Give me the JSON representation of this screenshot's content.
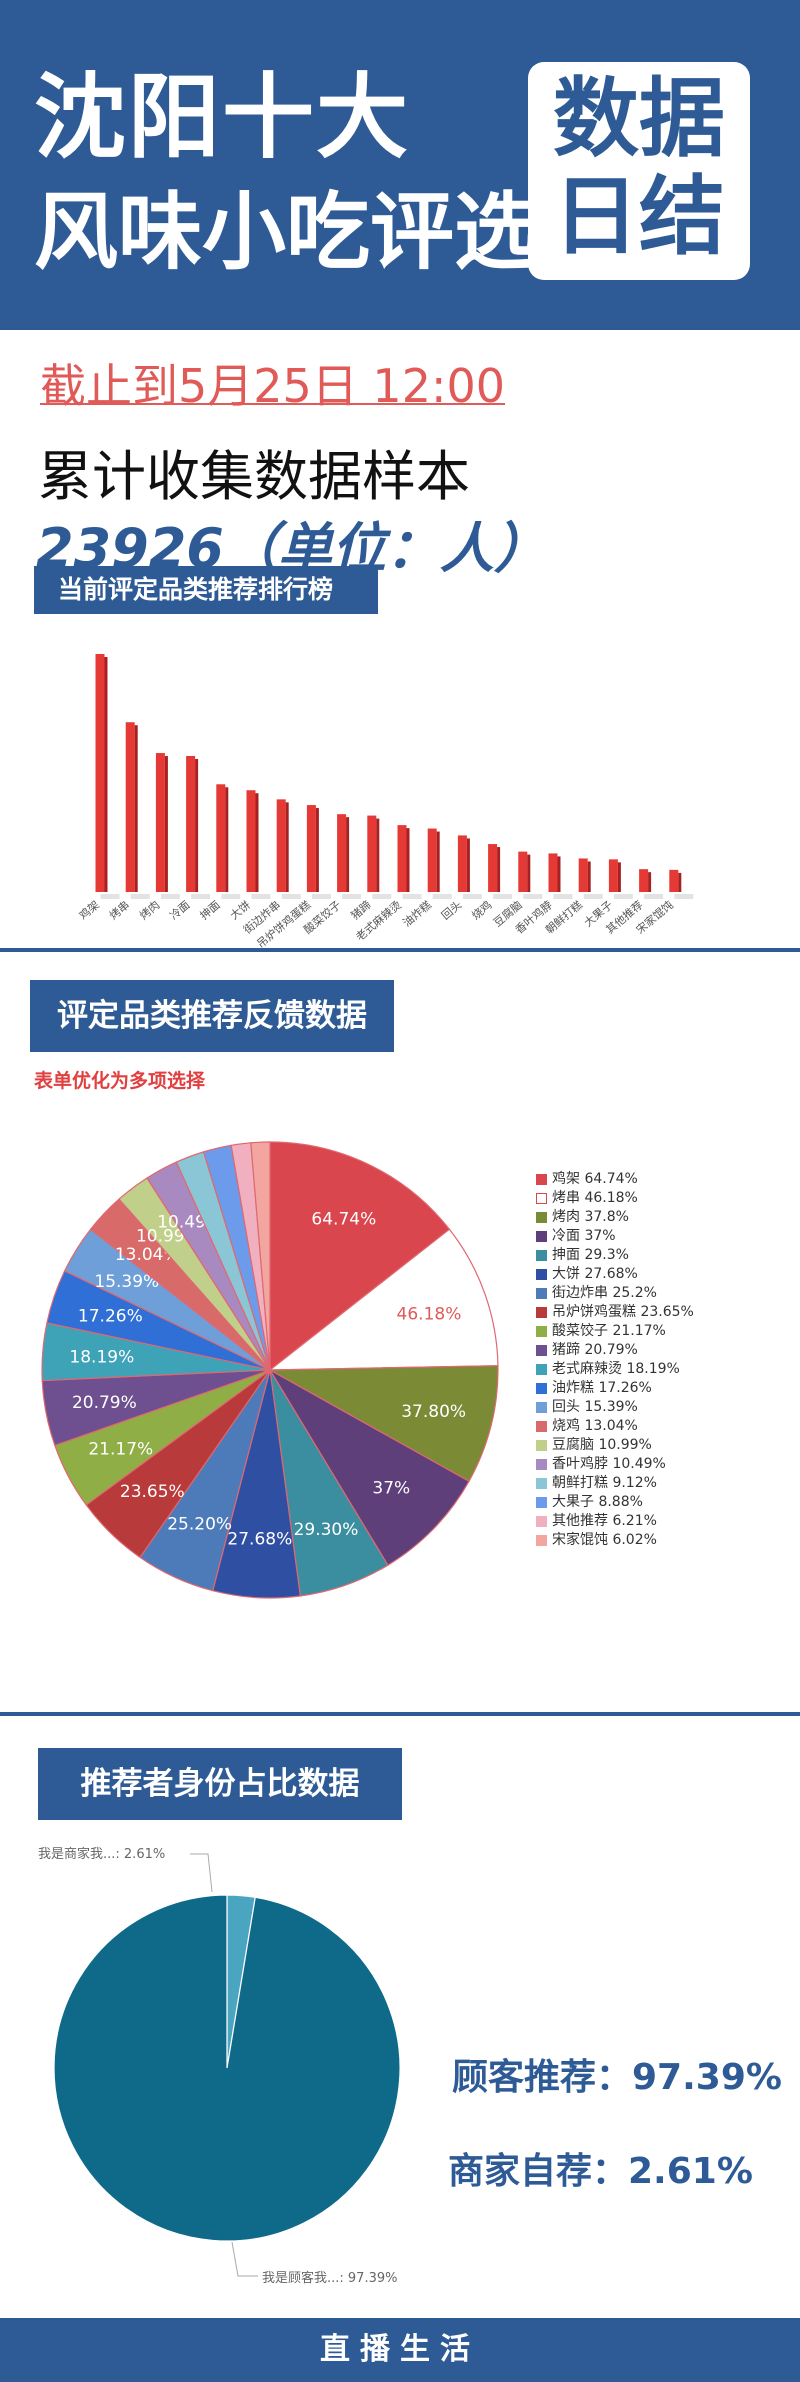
{
  "header": {
    "title_line1": "沈阳十大",
    "title_line2": "风味小吃评选",
    "badge_line1": "数据",
    "badge_line2": "日结"
  },
  "summary_block": {
    "cutoff": "截止到5月25日 12:00",
    "sample_label": "累计收集数据样本",
    "sample_count": "23926（单位：人）"
  },
  "sections": {
    "ranking_label": "当前评定品类推荐排行榜",
    "feedback_label": "评定品类推荐反馈数据",
    "feedback_note": "表单优化为多项选择",
    "identity_label": "推荐者身份占比数据"
  },
  "colors": {
    "brand": "#2e5b95",
    "accent_red": "#e05a57",
    "bar": "#e53935",
    "identity_main": "#0e6a88",
    "identity_small": "#4aa6c0"
  },
  "chart_data": [
    {
      "type": "bar",
      "categories": [
        "鸡架",
        "烤串",
        "烤肉",
        "冷面",
        "抻面",
        "大饼",
        "街边炸串",
        "吊炉饼鸡蛋糕",
        "酸菜饺子",
        "猪蹄",
        "老式麻辣烫",
        "油炸糕",
        "回头",
        "烧鸡",
        "豆腐脑",
        "香叶鸡脖",
        "朝鲜打糕",
        "大果子",
        "其他推荐",
        "宋家馄饨"
      ],
      "values": [
        64.74,
        46.18,
        37.8,
        37,
        29.3,
        27.68,
        25.2,
        23.65,
        21.17,
        20.79,
        18.19,
        17.26,
        15.39,
        13.04,
        10.99,
        10.49,
        9.12,
        8.88,
        6.21,
        6.02
      ],
      "title": "",
      "xlabel": "",
      "ylabel": ""
    },
    {
      "type": "pie",
      "labels": [
        "鸡架",
        "烤串",
        "烤肉",
        "冷面",
        "抻面",
        "大饼",
        "街边炸串",
        "吊炉饼鸡蛋糕",
        "酸菜饺子",
        "猪蹄",
        "老式麻辣烫",
        "油炸糕",
        "回头",
        "烧鸡",
        "豆腐脑",
        "香叶鸡脖",
        "朝鲜打糕",
        "大果子",
        "其他推荐",
        "宋家馄饨"
      ],
      "values": [
        64.74,
        46.18,
        37.8,
        37,
        29.3,
        27.68,
        25.2,
        23.65,
        21.17,
        20.79,
        18.19,
        17.26,
        15.39,
        13.04,
        10.99,
        10.49,
        9.12,
        8.88,
        6.21,
        6.02
      ],
      "slice_labels": [
        "64.74%",
        "46.18%",
        "37.80%",
        "37%",
        "29.30%",
        "27.68%",
        "25.20%",
        "23.65%",
        "21.17%",
        "20.79%",
        "18.19%",
        "17.26%",
        "15.39%",
        "13.04%",
        "10.99%",
        "10.49%",
        "",
        "",
        "",
        ""
      ],
      "legend_entries": [
        "鸡架 64.74%",
        "烤串 46.18%",
        "烤肉 37.8%",
        "冷面 37%",
        "抻面 29.3%",
        "大饼 27.68%",
        "街边炸串 25.2%",
        "吊炉饼鸡蛋糕 23.65%",
        "酸菜饺子 21.17%",
        "猪蹄 20.79%",
        "老式麻辣烫 18.19%",
        "油炸糕 17.26%",
        "回头 15.39%",
        "烧鸡 13.04%",
        "豆腐脑 10.99%",
        "香叶鸡脖 10.49%",
        "朝鲜打糕 9.12%",
        "大果子 8.88%",
        "其他推荐 6.21%",
        "宋家馄饨 6.02%"
      ],
      "colors": [
        "#d9464d",
        "#ffffff",
        "#7a8a35",
        "#5e3f7a",
        "#3a8ea0",
        "#2f4fa3",
        "#4d7ab8",
        "#b83a3a",
        "#8fae45",
        "#6e4f8f",
        "#3fa3b8",
        "#2f6fd6",
        "#6f9fd8",
        "#d86a6a",
        "#c0cf8a",
        "#a98ac0",
        "#8ac6d6",
        "#6b9bea",
        "#f0b0c0",
        "#f3a6a0"
      ],
      "legend": "right"
    },
    {
      "type": "pie",
      "labels": [
        "我是商家我...",
        "我是顾客我..."
      ],
      "values": [
        2.61,
        97.39
      ],
      "slice_labels": [
        "我是商家我...: 2.61%",
        "我是顾客我...: 97.39%"
      ],
      "colors": [
        "#4aa6c0",
        "#0e6a88"
      ]
    }
  ],
  "identity_summary": {
    "customer": "顾客推荐：97.39%",
    "merchant": "商家自荐：2.61%"
  },
  "footer": {
    "text": "直播生活"
  }
}
